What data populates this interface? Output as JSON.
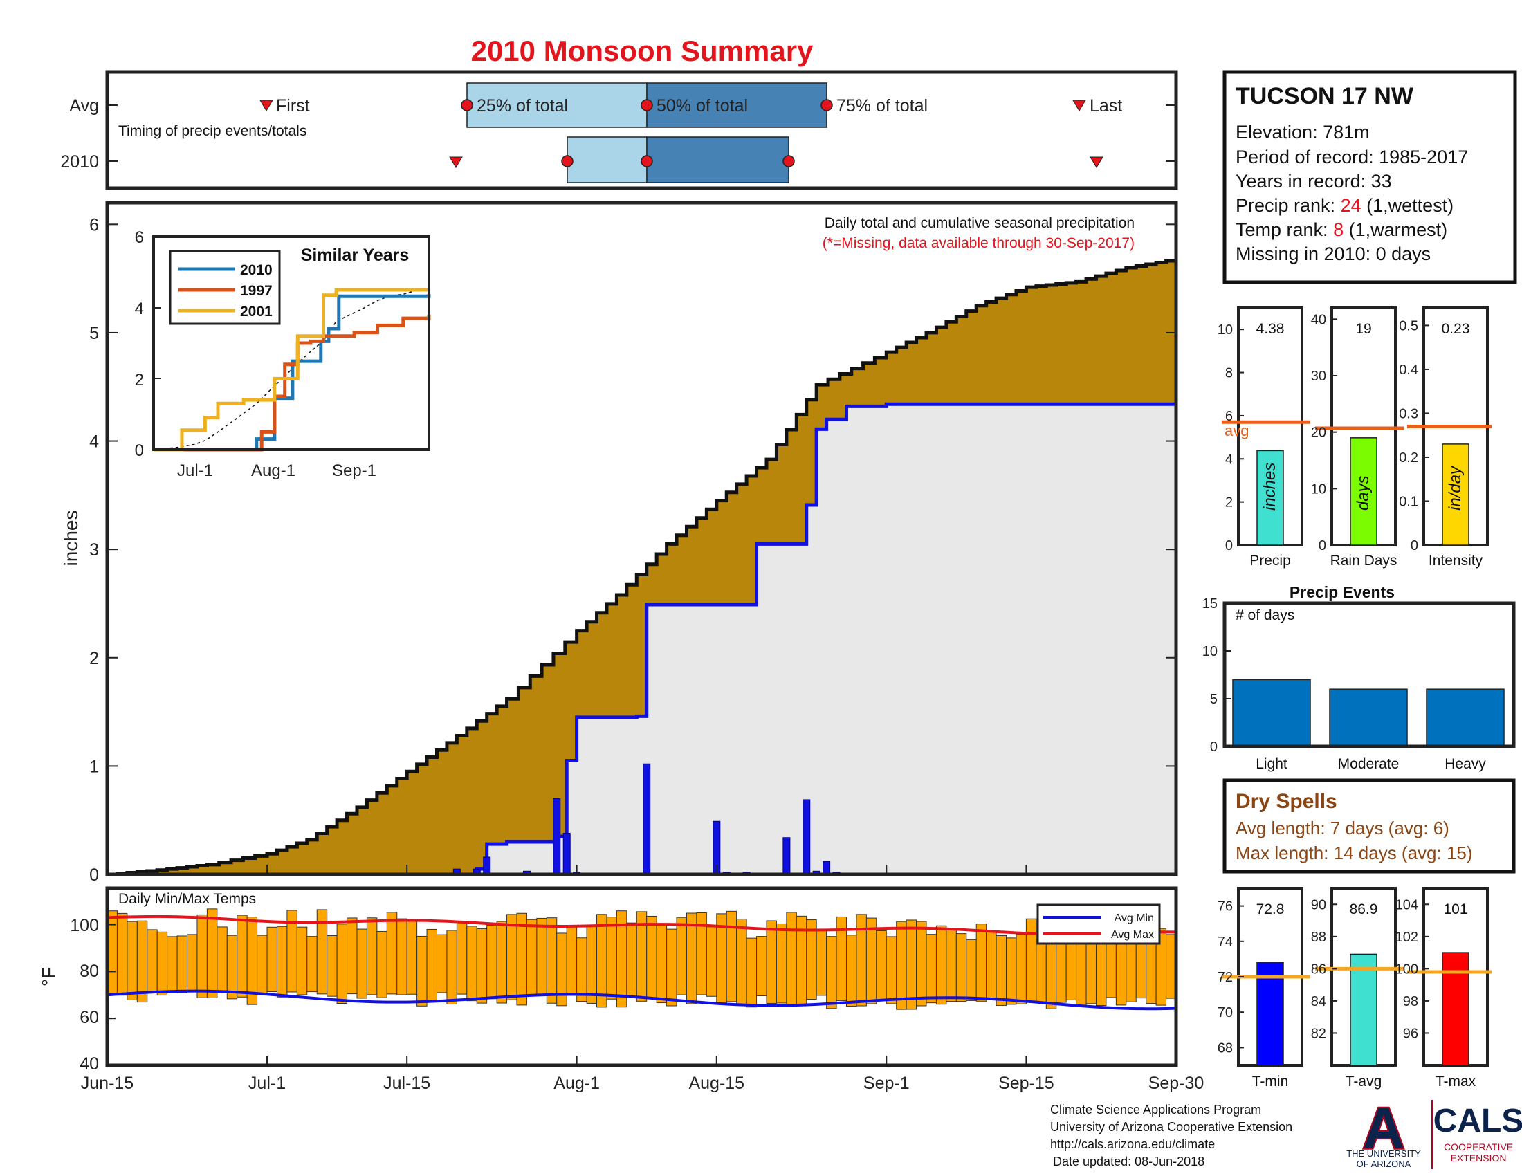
{
  "title": "2010 Monsoon Summary",
  "colors": {
    "title": "#e3141b",
    "avg_line": "#e8601c",
    "seasonal_fill": "#b8860b",
    "cum_2010": "#1010e0",
    "temp_bars": "#ffa500",
    "temp_ref": "#f5a623"
  },
  "timing": {
    "row_labels": [
      "Avg",
      "2010"
    ],
    "subtitle": "Timing of precip events/totals",
    "first_label": "First",
    "q25_label": "25% of total",
    "q50_label": "50% of total",
    "q75_label": "75% of total",
    "last_label": "Last"
  },
  "station": {
    "name": "TUCSON 17 NW",
    "elevation": "Elevation: 781m",
    "period": "Period of record: 1985-2017",
    "years": "Years in record: 33",
    "precip_rank_prefix": "Precip rank: ",
    "precip_rank_value": "24",
    "precip_rank_suffix": " (1,wettest)",
    "temp_rank_prefix": "Temp rank: ",
    "temp_rank_value": "8",
    "temp_rank_suffix": " (1,warmest)",
    "missing": "Missing in 2010: 0 days"
  },
  "main_chart": {
    "ylabel": "inches",
    "annotation_line1": "Daily total and cumulative seasonal precipitation",
    "annotation_line2": "(*=Missing, data available through 30-Sep-2017)"
  },
  "inset": {
    "title": "Similar Years"
  },
  "precip_stats": {
    "labels": [
      "Precip",
      "Rain Days",
      "Intensity"
    ],
    "units": [
      "inches",
      "days",
      "in/day"
    ],
    "values_text": [
      "4.38",
      "19",
      "0.23"
    ],
    "avg_label": "avg"
  },
  "events": {
    "title": "Precip Events",
    "ylabel": "# of days"
  },
  "dry_spells": {
    "title": "Dry Spells",
    "avg": "Avg length: 7 days (avg: 6)",
    "max": "Max length: 14 days (avg: 15)"
  },
  "temps": {
    "title": "Daily Min/Max Temps",
    "ylabel": "°F",
    "legend_min": "Avg Min",
    "legend_max": "Avg Max"
  },
  "temp_stats": {
    "labels": [
      "T-min",
      "T-avg",
      "T-max"
    ],
    "values_text": [
      "72.8",
      "86.9",
      "101"
    ]
  },
  "footer": {
    "line1": "Climate Science Applications Program",
    "line2": "University of Arizona Cooperative Extension",
    "line3": "http://cals.arizona.edu/climate",
    "line4": "Date updated: 08-Jun-2018",
    "ua_letter": "A",
    "ua_line1": "THE UNIVERSITY",
    "ua_line2": "OF ARIZONA",
    "cals": "CALS",
    "cals_line1": "COOPERATIVE",
    "cals_line2": "EXTENSION"
  },
  "chart_data": [
    {
      "type": "area",
      "title": "Daily total and cumulative seasonal precipitation",
      "ylabel": "inches",
      "ylim": [
        0,
        6.2
      ],
      "x_tick_labels": [
        "Jun-15",
        "Jul-1",
        "Jul-15",
        "Aug-1",
        "Aug-15",
        "Sep-1",
        "Sep-15",
        "Sep-30"
      ],
      "series": [
        {
          "name": "Average cumulative",
          "x": [
            "Jun-15",
            "Jun-20",
            "Jun-25",
            "Jul-1",
            "Jul-5",
            "Jul-10",
            "Jul-15",
            "Jul-20",
            "Jul-25",
            "Aug-1",
            "Aug-5",
            "Aug-10",
            "Aug-15",
            "Aug-20",
            "Aug-25",
            "Sep-1",
            "Sep-5",
            "Sep-10",
            "Sep-15",
            "Sep-20",
            "Sep-25",
            "Sep-30"
          ],
          "y": [
            0,
            0.04,
            0.09,
            0.19,
            0.32,
            0.62,
            0.95,
            1.28,
            1.62,
            2.25,
            2.58,
            3.05,
            3.45,
            3.83,
            4.52,
            4.82,
            5.0,
            5.25,
            5.42,
            5.47,
            5.6,
            5.68
          ]
        },
        {
          "name": "2010 cumulative",
          "x": [
            "Jun-15",
            "Jul-20",
            "Jul-22",
            "Jul-23",
            "Jul-25",
            "Jul-30",
            "Jul-31",
            "Aug-1",
            "Aug-7",
            "Aug-8",
            "Aug-15",
            "Aug-19",
            "Aug-22",
            "Aug-24",
            "Aug-25",
            "Aug-26",
            "Aug-28",
            "Sep-1",
            "Sep-30"
          ],
          "y": [
            0,
            0,
            0.05,
            0.28,
            0.3,
            0.35,
            1.05,
            1.45,
            1.46,
            2.49,
            2.49,
            3.05,
            3.05,
            3.41,
            4.11,
            4.2,
            4.32,
            4.34,
            4.38
          ]
        },
        {
          "name": "2010 daily",
          "type": "bar",
          "x": [
            "Jul-20",
            "Jul-22",
            "Jul-23",
            "Jul-27",
            "Jul-30",
            "Jul-31",
            "Aug-1",
            "Aug-7",
            "Aug-8",
            "Aug-15",
            "Aug-16",
            "Aug-18",
            "Aug-22",
            "Aug-24",
            "Aug-25",
            "Aug-26",
            "Aug-27"
          ],
          "y": [
            0.05,
            0.05,
            0.16,
            0.03,
            0.7,
            0.38,
            0.02,
            0.01,
            1.02,
            0.49,
            0.02,
            0.02,
            0.34,
            0.69,
            0.03,
            0.12,
            0.02
          ]
        }
      ]
    },
    {
      "type": "line",
      "title": "Similar Years",
      "x_tick_labels": [
        "Jul-1",
        "Aug-1",
        "Sep-1"
      ],
      "ylim": [
        0,
        6
      ],
      "series": [
        {
          "name": "2010",
          "color": "#1f77b4",
          "x": [
            "Jun-15",
            "Jul-20",
            "Jul-25",
            "Jul-26",
            "Aug-1",
            "Aug-6",
            "Aug-8",
            "Aug-15",
            "Aug-19",
            "Aug-22",
            "Aug-26",
            "Sep-30"
          ],
          "y": [
            0,
            0,
            0.3,
            0.3,
            1.45,
            1.45,
            2.49,
            2.49,
            3.05,
            3.41,
            4.32,
            4.38
          ]
        },
        {
          "name": "1997",
          "color": "#d95319",
          "x": [
            "Jun-15",
            "Jul-25",
            "Jul-27",
            "Aug-1",
            "Aug-5",
            "Aug-10",
            "Aug-15",
            "Aug-20",
            "Sep-1",
            "Sep-10",
            "Sep-20",
            "Sep-30"
          ],
          "y": [
            0,
            0,
            0.5,
            1.5,
            2.4,
            3.0,
            3.05,
            3.2,
            3.3,
            3.5,
            3.7,
            3.8
          ]
        },
        {
          "name": "2001",
          "color": "#edb120",
          "x": [
            "Jun-15",
            "Jun-22",
            "Jun-26",
            "Jul-5",
            "Jul-10",
            "Jul-20",
            "Aug-1",
            "Aug-10",
            "Aug-20",
            "Aug-25",
            "Sep-1",
            "Sep-15",
            "Sep-30"
          ],
          "y": [
            0,
            0,
            0.55,
            0.9,
            1.3,
            1.4,
            2.0,
            3.2,
            4.35,
            4.5,
            4.5,
            4.5,
            4.5
          ]
        }
      ]
    },
    {
      "type": "bar",
      "title": "Precip",
      "categories": [
        "Precip",
        "Rain Days",
        "Intensity"
      ],
      "values": [
        4.38,
        19,
        0.23
      ],
      "averages": [
        5.7,
        20.7,
        0.27
      ],
      "ylims": [
        [
          0,
          11
        ],
        [
          0,
          42
        ],
        [
          0,
          0.54
        ]
      ]
    },
    {
      "type": "bar",
      "title": "Precip Events",
      "ylabel": "# of days",
      "categories": [
        "Light",
        "Moderate",
        "Heavy"
      ],
      "values": [
        7,
        6,
        6
      ],
      "ylim": [
        0,
        15
      ]
    },
    {
      "type": "bar",
      "title": "Daily Min/Max Temps",
      "ylabel": "°F",
      "ylim": [
        40,
        115
      ],
      "series": [
        {
          "name": "Avg Min",
          "y_start": 70,
          "y_end": 66
        },
        {
          "name": "Avg Max",
          "y_start": 103,
          "y_end": 96
        }
      ]
    },
    {
      "type": "bar",
      "categories": [
        "T-min",
        "T-avg",
        "T-max"
      ],
      "values": [
        72.8,
        86.9,
        101
      ],
      "averages": [
        72.0,
        86.0,
        99.8
      ],
      "ylims": [
        [
          67,
          77
        ],
        [
          80,
          91
        ],
        [
          94,
          105
        ]
      ]
    }
  ]
}
